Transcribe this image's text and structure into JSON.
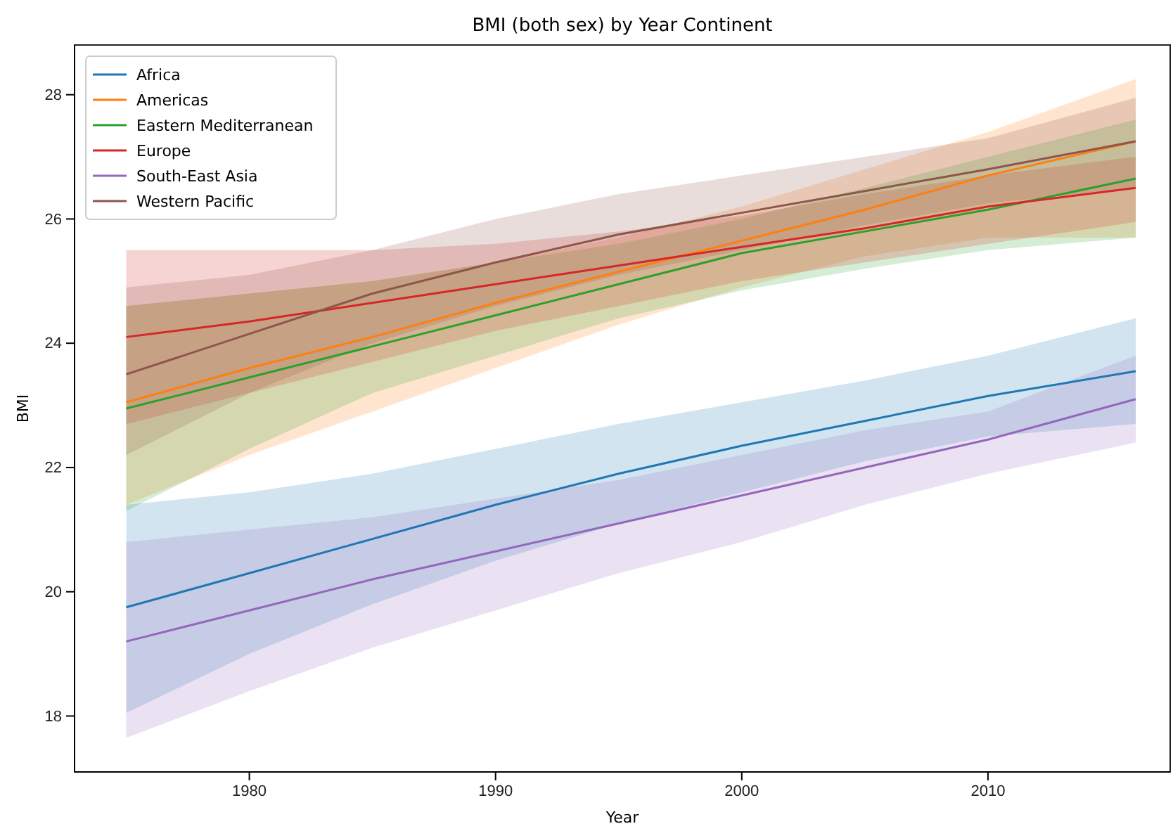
{
  "chart_data": {
    "type": "line",
    "title": "BMI (both sex) by Year Continent",
    "xlabel": "Year",
    "ylabel": "BMI",
    "x": [
      1975,
      1980,
      1985,
      1990,
      1995,
      2000,
      2005,
      2010,
      2016
    ],
    "xlim": [
      1972.9,
      2017.4
    ],
    "ylim": [
      17.1,
      28.8
    ],
    "xticks": [
      1980,
      1990,
      2000,
      2010
    ],
    "yticks": [
      18,
      20,
      22,
      24,
      26,
      28
    ],
    "legend": "top left",
    "grid": false,
    "marker": "none",
    "line_style": "solid",
    "series": [
      {
        "name": "Africa",
        "color": "#1f77b4",
        "values": [
          19.75,
          20.3,
          20.85,
          21.4,
          21.9,
          22.35,
          22.75,
          23.15,
          23.55
        ],
        "lower": [
          18.05,
          19.0,
          19.8,
          20.5,
          21.1,
          21.6,
          22.1,
          22.5,
          22.7
        ],
        "upper": [
          21.4,
          21.6,
          21.9,
          22.3,
          22.7,
          23.05,
          23.4,
          23.8,
          24.4
        ]
      },
      {
        "name": "Americas",
        "color": "#ff7f0e",
        "values": [
          23.05,
          23.6,
          24.1,
          24.65,
          25.15,
          25.65,
          26.15,
          26.7,
          27.25
        ],
        "lower": [
          21.4,
          22.2,
          22.9,
          23.6,
          24.3,
          24.9,
          25.4,
          25.7,
          25.7
        ],
        "upper": [
          24.6,
          24.8,
          25.0,
          25.3,
          25.7,
          26.2,
          26.8,
          27.4,
          28.25
        ]
      },
      {
        "name": "Eastern Mediterranean",
        "color": "#2ca02c",
        "values": [
          22.95,
          23.45,
          23.95,
          24.45,
          24.95,
          25.45,
          25.8,
          26.15,
          26.65
        ],
        "lower": [
          21.3,
          22.3,
          23.2,
          23.8,
          24.4,
          24.85,
          25.2,
          25.5,
          25.7
        ],
        "upper": [
          24.6,
          24.8,
          25.0,
          25.3,
          25.6,
          26.0,
          26.5,
          27.0,
          27.6
        ]
      },
      {
        "name": "Europe",
        "color": "#d62728",
        "values": [
          24.1,
          24.35,
          24.65,
          24.95,
          25.25,
          25.55,
          25.85,
          26.2,
          26.5
        ],
        "lower": [
          22.7,
          23.2,
          23.7,
          24.2,
          24.6,
          25.0,
          25.3,
          25.6,
          25.95
        ],
        "upper": [
          25.5,
          25.5,
          25.5,
          25.6,
          25.8,
          26.05,
          26.4,
          26.7,
          27.0
        ]
      },
      {
        "name": "South-East Asia",
        "color": "#9467bd",
        "values": [
          19.2,
          19.7,
          20.2,
          20.65,
          21.1,
          21.55,
          22.0,
          22.45,
          23.1
        ],
        "lower": [
          17.65,
          18.4,
          19.1,
          19.7,
          20.3,
          20.8,
          21.4,
          21.9,
          22.4
        ],
        "upper": [
          20.8,
          21.0,
          21.2,
          21.5,
          21.8,
          22.2,
          22.6,
          22.9,
          23.8
        ]
      },
      {
        "name": "Western Pacific",
        "color": "#8c564b",
        "values": [
          23.5,
          24.15,
          24.8,
          25.3,
          25.75,
          26.1,
          26.45,
          26.8,
          27.25
        ],
        "lower": [
          22.2,
          23.2,
          24.0,
          24.6,
          25.1,
          25.5,
          25.9,
          26.25,
          26.5
        ],
        "upper": [
          24.9,
          25.1,
          25.5,
          26.0,
          26.4,
          26.7,
          27.0,
          27.3,
          27.95
        ]
      }
    ]
  }
}
